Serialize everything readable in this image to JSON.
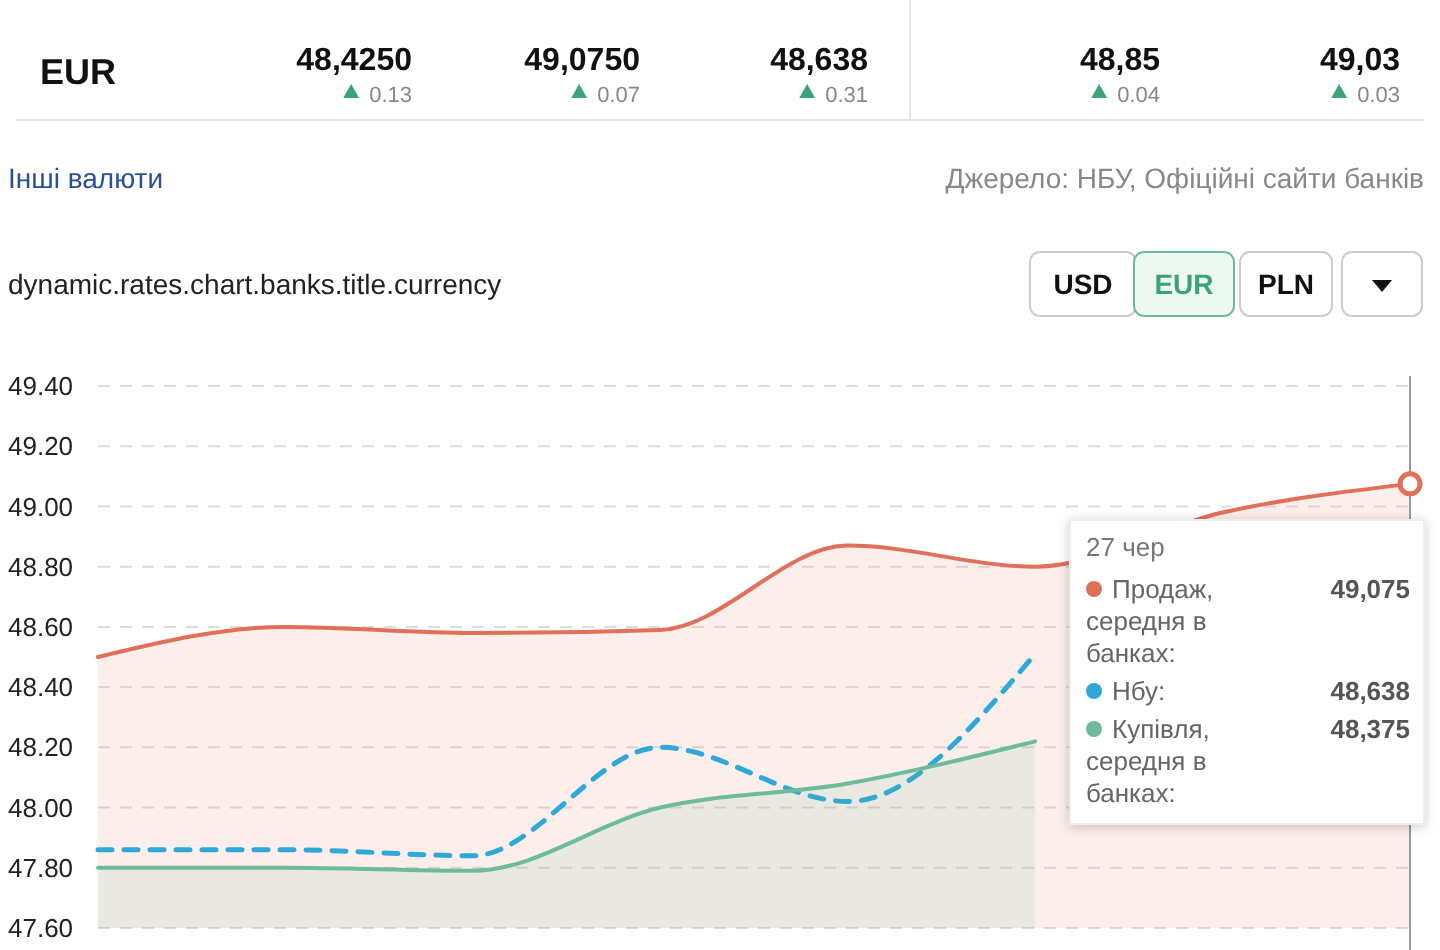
{
  "chart_data": {
    "type": "area",
    "title": "dynamic.rates.chart.banks.title.currency",
    "categories": [
      null,
      null,
      null,
      null,
      null,
      null,
      null,
      null
    ],
    "series": [
      {
        "name": "Продаж, середня в банках:",
        "color": "#e0705a",
        "values": [
          48.5,
          48.6,
          48.58,
          48.59,
          48.87,
          48.8,
          48.98,
          49.075
        ]
      },
      {
        "name": "Нбу:",
        "type": "line",
        "line_style": "dashed",
        "color": "#2ea8d8",
        "values": [
          47.86,
          47.86,
          47.84,
          48.2,
          48.02,
          48.51,
          null,
          null
        ]
      },
      {
        "name": "Купівля, середня в банках:",
        "color": "#6dbb9a",
        "values": [
          47.8,
          47.8,
          47.79,
          48.0,
          48.08,
          48.22,
          null,
          null
        ]
      }
    ],
    "ylim": [
      47.6,
      49.4
    ],
    "yticks": [
      {
        "value": 47.6,
        "label": "47.60"
      },
      {
        "value": 47.8,
        "label": "47.80"
      },
      {
        "value": 48.0,
        "label": "48.00"
      },
      {
        "value": 48.2,
        "label": "48.20"
      },
      {
        "value": 48.4,
        "label": "48.40"
      },
      {
        "value": 48.6,
        "label": "48.60"
      },
      {
        "value": 48.8,
        "label": "48.80"
      },
      {
        "value": 49.0,
        "label": "49.00"
      },
      {
        "value": 49.2,
        "label": "49.20"
      },
      {
        "value": 49.4,
        "label": "49.40"
      }
    ],
    "grid": "y",
    "tick_labels": "y",
    "annotations": [
      "EUR",
      "48,4250",
      "0.13",
      "49,0750",
      "0.07",
      "48,638",
      "0.31",
      "48,85",
      "0.04",
      "49,03",
      "0.03",
      "Інші валюти",
      "Джерело: НБУ, Офіційні сайти банків",
      "USD",
      "EUR",
      "PLN",
      "27 чер",
      "49,075",
      "48,638",
      "48,375"
    ],
    "legend": "right"
  }
}
